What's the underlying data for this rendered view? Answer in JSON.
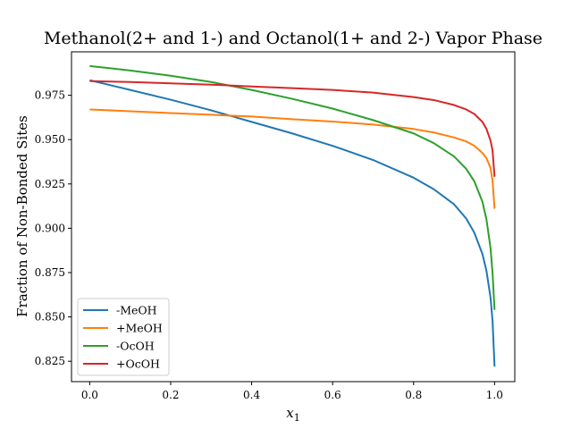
{
  "chart_data": {
    "type": "line",
    "title": "Methanol(2+ and 1-) and Octanol(1+ and 2-) Vapor Phase",
    "xlabel": "x",
    "xlabel_subscript": "1",
    "ylabel": "Fraction of Non-Bonded Sites",
    "xlim": [
      -0.045,
      1.05
    ],
    "ylim": [
      0.8135,
      0.9995
    ],
    "xticks": [
      0.0,
      0.2,
      0.4,
      0.6,
      0.8,
      1.0
    ],
    "xtick_labels": [
      "0.0",
      "0.2",
      "0.4",
      "0.6",
      "0.8",
      "1.0"
    ],
    "yticks": [
      0.825,
      0.85,
      0.875,
      0.9,
      0.925,
      0.95,
      0.975
    ],
    "ytick_labels": [
      "0.825",
      "0.850",
      "0.875",
      "0.900",
      "0.925",
      "0.950",
      "0.975"
    ],
    "grid": false,
    "legend_position": "lower-left",
    "series": [
      {
        "name": "-MeOH",
        "color": "#1f77b4",
        "x": [
          0,
          0.1,
          0.2,
          0.3,
          0.4,
          0.5,
          0.6,
          0.7,
          0.8,
          0.85,
          0.9,
          0.93,
          0.95,
          0.97,
          0.98,
          0.99,
          0.995,
          1.0
        ],
        "y": [
          0.9835,
          0.978,
          0.9725,
          0.9665,
          0.96,
          0.9535,
          0.9465,
          0.9385,
          0.9285,
          0.922,
          0.9135,
          0.9055,
          0.8975,
          0.8855,
          0.876,
          0.861,
          0.848,
          0.822
        ]
      },
      {
        "name": "+MeOH",
        "color": "#ff7f0e",
        "x": [
          0,
          0.1,
          0.2,
          0.3,
          0.4,
          0.5,
          0.6,
          0.7,
          0.8,
          0.85,
          0.9,
          0.93,
          0.95,
          0.97,
          0.98,
          0.99,
          0.995,
          1.0
        ],
        "y": [
          0.967,
          0.966,
          0.965,
          0.964,
          0.963,
          0.9615,
          0.9602,
          0.9585,
          0.956,
          0.954,
          0.9512,
          0.949,
          0.9465,
          0.9425,
          0.9395,
          0.934,
          0.927,
          0.911
        ]
      },
      {
        "name": "-OcOH",
        "color": "#2ca02c",
        "x": [
          0,
          0.1,
          0.2,
          0.3,
          0.4,
          0.5,
          0.6,
          0.7,
          0.8,
          0.85,
          0.9,
          0.93,
          0.95,
          0.97,
          0.98,
          0.99,
          0.995,
          1.0
        ],
        "y": [
          0.9915,
          0.989,
          0.986,
          0.9825,
          0.978,
          0.973,
          0.9675,
          0.961,
          0.9535,
          0.948,
          0.9405,
          0.9335,
          0.9265,
          0.915,
          0.905,
          0.889,
          0.875,
          0.854
        ]
      },
      {
        "name": "+OcOH",
        "color": "#d62728",
        "x": [
          0,
          0.1,
          0.2,
          0.3,
          0.4,
          0.5,
          0.6,
          0.7,
          0.8,
          0.85,
          0.9,
          0.93,
          0.95,
          0.97,
          0.98,
          0.99,
          0.995,
          1.0
        ],
        "y": [
          0.983,
          0.9825,
          0.9817,
          0.981,
          0.98,
          0.979,
          0.978,
          0.9765,
          0.974,
          0.9723,
          0.9695,
          0.967,
          0.9645,
          0.96,
          0.956,
          0.9495,
          0.944,
          0.929
        ]
      }
    ]
  }
}
